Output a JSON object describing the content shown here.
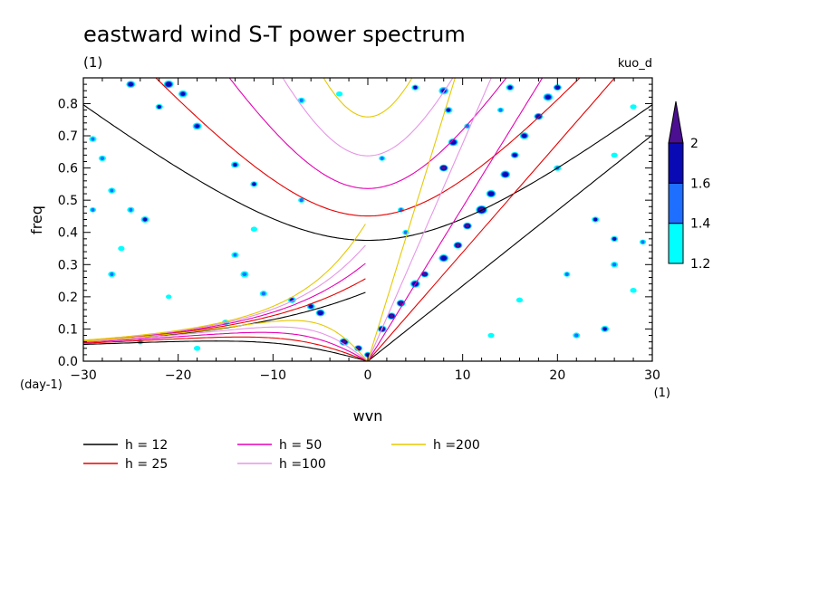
{
  "chart_data": {
    "type": "heatmap",
    "title": "eastward wind S-T power spectrum",
    "subtitle": "(1)",
    "model_label": "kuo_d",
    "xlabel": "wvn",
    "ylabel": "freq",
    "x_unit": "(1)",
    "y_unit": "(day-1)",
    "xlim": [
      -30,
      30
    ],
    "ylim": [
      0,
      0.88
    ],
    "x_ticks": [
      -30,
      -20,
      -10,
      0,
      10,
      20,
      30
    ],
    "y_ticks": [
      0.0,
      0.1,
      0.2,
      0.3,
      0.4,
      0.5,
      0.6,
      0.7,
      0.8
    ],
    "x_tick_labels": [
      "−30",
      "−20",
      "−10",
      "0",
      "10",
      "20",
      "30"
    ],
    "y_tick_labels": [
      "0.0",
      "0.1",
      "0.2",
      "0.3",
      "0.4",
      "0.5",
      "0.6",
      "0.7",
      "0.8"
    ],
    "colorbar": {
      "levels": [
        1.2,
        1.4,
        1.6,
        2
      ],
      "level_labels": [
        "1.2",
        "1.4",
        "1.6",
        "2"
      ],
      "colors": [
        "#00ffff",
        "#1e6eff",
        "#0a0ab4",
        "#4b0f91"
      ]
    },
    "dispersion_curves": [
      {
        "name": "h = 12",
        "color": "#000000",
        "h": 12
      },
      {
        "name": "h = 25",
        "color": "#e60000",
        "h": 25
      },
      {
        "name": "h = 50",
        "color": "#e600b4",
        "h": 50
      },
      {
        "name": "h =100",
        "color": "#e696e6",
        "h": 100
      },
      {
        "name": "h =200",
        "color": "#e6c800",
        "h": 200
      }
    ],
    "blobs": [
      {
        "x": 8,
        "y": 0.6,
        "r": 0.55,
        "v": 2.1
      },
      {
        "x": 9,
        "y": 0.68,
        "r": 0.6,
        "v": 1.9
      },
      {
        "x": 1.5,
        "y": 0.1,
        "r": 0.55,
        "v": 2.0
      },
      {
        "x": 2.5,
        "y": 0.14,
        "r": 0.55,
        "v": 2.0
      },
      {
        "x": 3.5,
        "y": 0.18,
        "r": 0.55,
        "v": 2.0
      },
      {
        "x": 5,
        "y": 0.24,
        "r": 0.6,
        "v": 1.9
      },
      {
        "x": 6,
        "y": 0.27,
        "r": 0.5,
        "v": 2.0
      },
      {
        "x": 8,
        "y": 0.32,
        "r": 0.6,
        "v": 1.9
      },
      {
        "x": 9.5,
        "y": 0.36,
        "r": 0.55,
        "v": 2.0
      },
      {
        "x": 10.5,
        "y": 0.42,
        "r": 0.55,
        "v": 2.0
      },
      {
        "x": 12,
        "y": 0.47,
        "r": 0.7,
        "v": 2.1
      },
      {
        "x": 13,
        "y": 0.52,
        "r": 0.6,
        "v": 1.9
      },
      {
        "x": 14.5,
        "y": 0.58,
        "r": 0.6,
        "v": 1.9
      },
      {
        "x": 15.5,
        "y": 0.64,
        "r": 0.5,
        "v": 1.8
      },
      {
        "x": 16.5,
        "y": 0.7,
        "r": 0.55,
        "v": 1.8
      },
      {
        "x": 18,
        "y": 0.76,
        "r": 0.55,
        "v": 1.9
      },
      {
        "x": 19,
        "y": 0.82,
        "r": 0.6,
        "v": 1.8
      },
      {
        "x": 20,
        "y": 0.85,
        "r": 0.5,
        "v": 1.9
      },
      {
        "x": 8,
        "y": 0.84,
        "r": 0.6,
        "v": 1.7
      },
      {
        "x": 8.5,
        "y": 0.78,
        "r": 0.5,
        "v": 1.6
      },
      {
        "x": 15,
        "y": 0.85,
        "r": 0.5,
        "v": 1.7
      },
      {
        "x": 14,
        "y": 0.78,
        "r": 0.4,
        "v": 1.5
      },
      {
        "x": -2.5,
        "y": 0.06,
        "r": 0.6,
        "v": 2.0
      },
      {
        "x": -1,
        "y": 0.04,
        "r": 0.5,
        "v": 2.0
      },
      {
        "x": 0,
        "y": 0.02,
        "r": 0.45,
        "v": 1.9
      },
      {
        "x": -5,
        "y": 0.15,
        "r": 0.55,
        "v": 1.9
      },
      {
        "x": -6,
        "y": 0.17,
        "r": 0.5,
        "v": 1.7
      },
      {
        "x": -8,
        "y": 0.19,
        "r": 0.5,
        "v": 1.6
      },
      {
        "x": -11,
        "y": 0.21,
        "r": 0.45,
        "v": 1.5
      },
      {
        "x": -13,
        "y": 0.27,
        "r": 0.5,
        "v": 1.5
      },
      {
        "x": -14,
        "y": 0.33,
        "r": 0.45,
        "v": 1.4
      },
      {
        "x": -19.5,
        "y": 0.83,
        "r": 0.55,
        "v": 1.7
      },
      {
        "x": -21,
        "y": 0.86,
        "r": 0.6,
        "v": 1.9
      },
      {
        "x": -22,
        "y": 0.79,
        "r": 0.45,
        "v": 1.6
      },
      {
        "x": -18,
        "y": 0.73,
        "r": 0.55,
        "v": 1.7
      },
      {
        "x": -14,
        "y": 0.61,
        "r": 0.5,
        "v": 1.6
      },
      {
        "x": -12,
        "y": 0.55,
        "r": 0.45,
        "v": 1.6
      },
      {
        "x": -25,
        "y": 0.86,
        "r": 0.55,
        "v": 1.8
      },
      {
        "x": -23.5,
        "y": 0.44,
        "r": 0.5,
        "v": 1.6
      },
      {
        "x": -25,
        "y": 0.47,
        "r": 0.45,
        "v": 1.4
      },
      {
        "x": -27,
        "y": 0.53,
        "r": 0.45,
        "v": 1.4
      },
      {
        "x": -28,
        "y": 0.63,
        "r": 0.45,
        "v": 1.5
      },
      {
        "x": -29,
        "y": 0.69,
        "r": 0.45,
        "v": 1.4
      },
      {
        "x": -29,
        "y": 0.47,
        "r": 0.4,
        "v": 1.4
      },
      {
        "x": -26,
        "y": 0.35,
        "r": 0.4,
        "v": 1.3
      },
      {
        "x": -27,
        "y": 0.27,
        "r": 0.45,
        "v": 1.4
      },
      {
        "x": -24,
        "y": 0.06,
        "r": 0.4,
        "v": 1.4
      },
      {
        "x": -18,
        "y": 0.04,
        "r": 0.4,
        "v": 1.3
      },
      {
        "x": -7,
        "y": 0.5,
        "r": 0.4,
        "v": 1.4
      },
      {
        "x": -7,
        "y": 0.81,
        "r": 0.45,
        "v": 1.4
      },
      {
        "x": -3,
        "y": 0.83,
        "r": 0.4,
        "v": 1.3
      },
      {
        "x": -12,
        "y": 0.41,
        "r": 0.4,
        "v": 1.3
      },
      {
        "x": -15,
        "y": 0.12,
        "r": 0.45,
        "v": 1.4
      },
      {
        "x": -21,
        "y": 0.2,
        "r": 0.35,
        "v": 1.3
      },
      {
        "x": 1.5,
        "y": 0.63,
        "r": 0.4,
        "v": 1.5
      },
      {
        "x": 3.5,
        "y": 0.47,
        "r": 0.4,
        "v": 1.4
      },
      {
        "x": 4,
        "y": 0.4,
        "r": 0.4,
        "v": 1.4
      },
      {
        "x": 5,
        "y": 0.85,
        "r": 0.45,
        "v": 1.6
      },
      {
        "x": 10.5,
        "y": 0.73,
        "r": 0.4,
        "v": 1.4
      },
      {
        "x": 20,
        "y": 0.6,
        "r": 0.45,
        "v": 1.4
      },
      {
        "x": 24,
        "y": 0.44,
        "r": 0.45,
        "v": 1.6
      },
      {
        "x": 26,
        "y": 0.3,
        "r": 0.45,
        "v": 1.5
      },
      {
        "x": 26,
        "y": 0.38,
        "r": 0.45,
        "v": 1.6
      },
      {
        "x": 29,
        "y": 0.37,
        "r": 0.4,
        "v": 1.4
      },
      {
        "x": 22,
        "y": 0.08,
        "r": 0.45,
        "v": 1.5
      },
      {
        "x": 25,
        "y": 0.1,
        "r": 0.5,
        "v": 1.6
      },
      {
        "x": 28,
        "y": 0.22,
        "r": 0.4,
        "v": 1.3
      },
      {
        "x": 21,
        "y": 0.27,
        "r": 0.4,
        "v": 1.4
      },
      {
        "x": 16,
        "y": 0.19,
        "r": 0.4,
        "v": 1.3
      },
      {
        "x": 13,
        "y": 0.08,
        "r": 0.4,
        "v": 1.3
      },
      {
        "x": 26,
        "y": 0.64,
        "r": 0.4,
        "v": 1.3
      },
      {
        "x": 28,
        "y": 0.79,
        "r": 0.4,
        "v": 1.3
      }
    ]
  },
  "legend": {
    "items": [
      {
        "label": "h = 12",
        "color": "#000000"
      },
      {
        "label": "h = 25",
        "color": "#e60000"
      },
      {
        "label": "h = 50",
        "color": "#e600b4"
      },
      {
        "label": "h =100",
        "color": "#e696e6"
      },
      {
        "label": "h =200",
        "color": "#e6c800"
      }
    ]
  }
}
